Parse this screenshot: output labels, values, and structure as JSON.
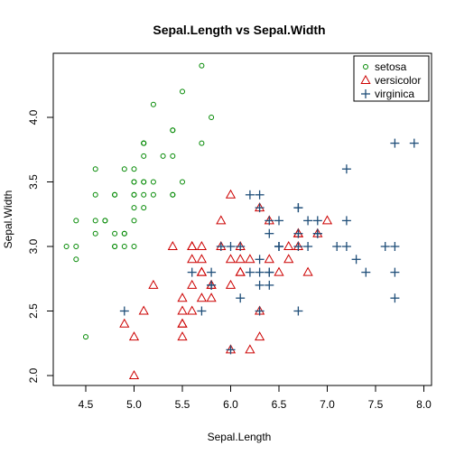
{
  "chart_data": {
    "type": "scatter",
    "title": "Sepal.Length vs Sepal.Width",
    "xlabel": "Sepal.Length",
    "ylabel": "Sepal.Width",
    "xlim": [
      4.3,
      7.9
    ],
    "ylim": [
      2.0,
      4.4
    ],
    "xticks": [
      4.5,
      5.0,
      5.5,
      6.0,
      6.5,
      7.0,
      7.5,
      8.0
    ],
    "xtick_labels": [
      "4.5",
      "5.0",
      "5.5",
      "6.0",
      "6.5",
      "7.0",
      "7.5",
      "8.0"
    ],
    "yticks": [
      2.0,
      2.5,
      3.0,
      3.5,
      4.0
    ],
    "ytick_labels": [
      "2.0",
      "2.5",
      "3.0",
      "3.5",
      "4.0"
    ],
    "legend_position": "top-right",
    "grid": false,
    "series": [
      {
        "name": "setosa",
        "marker": "circle",
        "color": "#008800",
        "points": [
          [
            5.1,
            3.5
          ],
          [
            4.9,
            3.0
          ],
          [
            4.7,
            3.2
          ],
          [
            4.6,
            3.1
          ],
          [
            5.0,
            3.6
          ],
          [
            5.4,
            3.9
          ],
          [
            4.6,
            3.4
          ],
          [
            5.0,
            3.4
          ],
          [
            4.4,
            2.9
          ],
          [
            4.9,
            3.1
          ],
          [
            5.4,
            3.7
          ],
          [
            4.8,
            3.4
          ],
          [
            4.8,
            3.0
          ],
          [
            4.3,
            3.0
          ],
          [
            5.8,
            4.0
          ],
          [
            5.7,
            4.4
          ],
          [
            5.4,
            3.9
          ],
          [
            5.1,
            3.5
          ],
          [
            5.7,
            3.8
          ],
          [
            5.1,
            3.8
          ],
          [
            5.4,
            3.4
          ],
          [
            5.1,
            3.7
          ],
          [
            4.6,
            3.6
          ],
          [
            5.1,
            3.3
          ],
          [
            4.8,
            3.4
          ],
          [
            5.0,
            3.0
          ],
          [
            5.0,
            3.4
          ],
          [
            5.2,
            3.5
          ],
          [
            5.2,
            3.4
          ],
          [
            4.7,
            3.2
          ],
          [
            4.8,
            3.1
          ],
          [
            5.4,
            3.4
          ],
          [
            5.2,
            4.1
          ],
          [
            5.5,
            4.2
          ],
          [
            4.9,
            3.1
          ],
          [
            5.0,
            3.2
          ],
          [
            5.5,
            3.5
          ],
          [
            4.9,
            3.6
          ],
          [
            4.4,
            3.0
          ],
          [
            5.1,
            3.4
          ],
          [
            5.0,
            3.5
          ],
          [
            4.5,
            2.3
          ],
          [
            4.4,
            3.2
          ],
          [
            5.0,
            3.5
          ],
          [
            5.1,
            3.8
          ],
          [
            4.8,
            3.0
          ],
          [
            5.1,
            3.8
          ],
          [
            4.6,
            3.2
          ],
          [
            5.3,
            3.7
          ],
          [
            5.0,
            3.3
          ]
        ]
      },
      {
        "name": "versicolor",
        "marker": "triangle",
        "color": "#cc0000",
        "points": [
          [
            7.0,
            3.2
          ],
          [
            6.4,
            3.2
          ],
          [
            6.9,
            3.1
          ],
          [
            5.5,
            2.3
          ],
          [
            6.5,
            2.8
          ],
          [
            5.7,
            2.8
          ],
          [
            6.3,
            3.3
          ],
          [
            4.9,
            2.4
          ],
          [
            6.6,
            2.9
          ],
          [
            5.2,
            2.7
          ],
          [
            5.0,
            2.0
          ],
          [
            5.9,
            3.0
          ],
          [
            6.0,
            2.2
          ],
          [
            6.1,
            2.9
          ],
          [
            5.6,
            2.9
          ],
          [
            6.7,
            3.1
          ],
          [
            5.6,
            3.0
          ],
          [
            5.8,
            2.7
          ],
          [
            6.2,
            2.2
          ],
          [
            5.6,
            2.5
          ],
          [
            5.9,
            3.2
          ],
          [
            6.1,
            2.8
          ],
          [
            6.3,
            2.5
          ],
          [
            6.1,
            2.8
          ],
          [
            6.4,
            2.9
          ],
          [
            6.6,
            3.0
          ],
          [
            6.8,
            2.8
          ],
          [
            6.7,
            3.0
          ],
          [
            6.0,
            2.9
          ],
          [
            5.7,
            2.6
          ],
          [
            5.5,
            2.4
          ],
          [
            5.5,
            2.4
          ],
          [
            5.8,
            2.7
          ],
          [
            6.0,
            2.7
          ],
          [
            5.4,
            3.0
          ],
          [
            6.0,
            3.4
          ],
          [
            6.7,
            3.1
          ],
          [
            6.3,
            2.3
          ],
          [
            5.6,
            3.0
          ],
          [
            5.5,
            2.5
          ],
          [
            5.5,
            2.6
          ],
          [
            6.1,
            3.0
          ],
          [
            5.8,
            2.6
          ],
          [
            5.0,
            2.3
          ],
          [
            5.6,
            2.7
          ],
          [
            5.7,
            3.0
          ],
          [
            5.7,
            2.9
          ],
          [
            6.2,
            2.9
          ],
          [
            5.1,
            2.5
          ],
          [
            5.7,
            2.8
          ]
        ]
      },
      {
        "name": "virginica",
        "marker": "plus",
        "color": "#1f4e79",
        "points": [
          [
            6.3,
            3.3
          ],
          [
            5.8,
            2.7
          ],
          [
            7.1,
            3.0
          ],
          [
            6.3,
            2.9
          ],
          [
            6.5,
            3.0
          ],
          [
            7.6,
            3.0
          ],
          [
            4.9,
            2.5
          ],
          [
            7.3,
            2.9
          ],
          [
            6.7,
            2.5
          ],
          [
            7.2,
            3.6
          ],
          [
            6.5,
            3.2
          ],
          [
            6.4,
            2.7
          ],
          [
            6.8,
            3.0
          ],
          [
            5.7,
            2.5
          ],
          [
            5.8,
            2.8
          ],
          [
            6.4,
            3.2
          ],
          [
            6.5,
            3.0
          ],
          [
            7.7,
            3.8
          ],
          [
            7.7,
            2.6
          ],
          [
            6.0,
            2.2
          ],
          [
            6.9,
            3.2
          ],
          [
            5.6,
            2.8
          ],
          [
            7.7,
            2.8
          ],
          [
            6.3,
            2.7
          ],
          [
            6.7,
            3.3
          ],
          [
            7.2,
            3.2
          ],
          [
            6.2,
            2.8
          ],
          [
            6.1,
            3.0
          ],
          [
            6.4,
            2.8
          ],
          [
            7.2,
            3.0
          ],
          [
            7.4,
            2.8
          ],
          [
            7.9,
            3.8
          ],
          [
            6.4,
            2.8
          ],
          [
            6.3,
            2.8
          ],
          [
            6.1,
            2.6
          ],
          [
            7.7,
            3.0
          ],
          [
            6.3,
            3.4
          ],
          [
            6.4,
            3.1
          ],
          [
            6.0,
            3.0
          ],
          [
            6.9,
            3.1
          ],
          [
            6.7,
            3.1
          ],
          [
            6.9,
            3.1
          ],
          [
            5.8,
            2.7
          ],
          [
            6.8,
            3.2
          ],
          [
            6.7,
            3.3
          ],
          [
            6.7,
            3.0
          ],
          [
            6.3,
            2.5
          ],
          [
            6.5,
            3.0
          ],
          [
            6.2,
            3.4
          ],
          [
            5.9,
            3.0
          ]
        ]
      }
    ]
  }
}
